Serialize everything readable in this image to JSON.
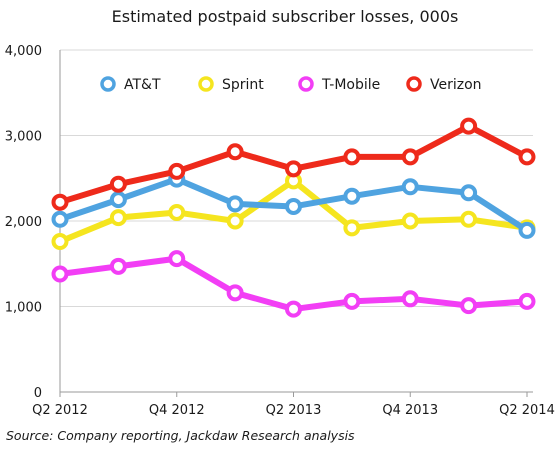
{
  "chart_data": {
    "type": "line",
    "title": "Estimated postpaid subscriber losses, 000s",
    "xlabel": "",
    "ylabel": "",
    "ylim": [
      0,
      4000
    ],
    "y_ticks": [
      "0",
      "1,000",
      "2,000",
      "3,000",
      "4,000"
    ],
    "x": [
      "Q2 2012",
      "Q3 2012",
      "Q4 2012",
      "Q1 2013",
      "Q2 2013",
      "Q3 2013",
      "Q4 2013",
      "Q1 2014",
      "Q2 2014"
    ],
    "x_tick_labels": [
      "Q2 2012",
      "Q4 2012",
      "Q2 2013",
      "Q4 2013",
      "Q2 2014"
    ],
    "grid": true,
    "legend_position": "top",
    "series": [
      {
        "name": "Sprint",
        "color": "#f5e51f",
        "values": [
          1760,
          2040,
          2100,
          2000,
          2470,
          1920,
          2000,
          2020,
          1920
        ]
      },
      {
        "name": "AT&T",
        "color": "#4fa3e0",
        "values": [
          2020,
          2250,
          2490,
          2200,
          2170,
          2290,
          2400,
          2330,
          1890
        ]
      },
      {
        "name": "T-Mobile",
        "color": "#f23ef5",
        "values": [
          1380,
          1470,
          1560,
          1160,
          970,
          1060,
          1090,
          1010,
          1060
        ]
      },
      {
        "name": "Verizon",
        "color": "#ee2a1b",
        "values": [
          2220,
          2430,
          2580,
          2810,
          2610,
          2750,
          2750,
          3110,
          2750
        ]
      }
    ],
    "legend_order": [
      "AT&T",
      "Sprint",
      "T-Mobile",
      "Verizon"
    ],
    "source": "Source: Company reporting, Jackdaw Research analysis"
  }
}
